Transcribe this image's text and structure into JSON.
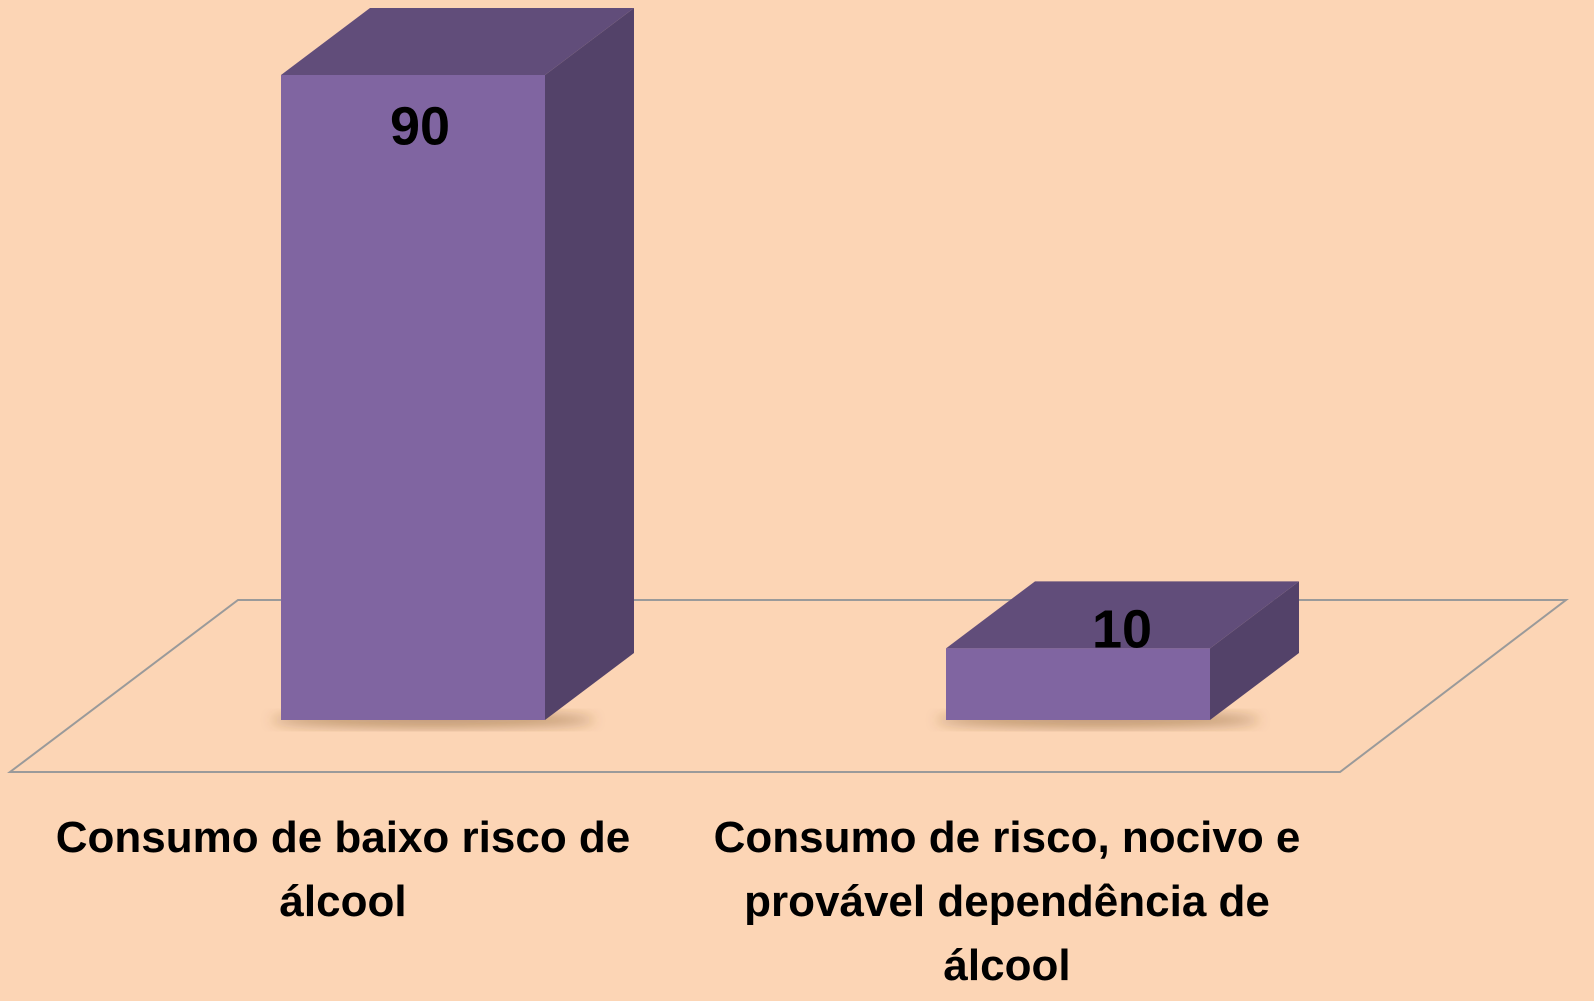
{
  "chart_data": {
    "type": "bar3d",
    "categories": [
      "Consumo de baixo risco de álcool",
      "Consumo de risco, nocivo e provável dependência de álcool"
    ],
    "values": [
      90,
      10
    ],
    "color": "#8065a1"
  }
}
